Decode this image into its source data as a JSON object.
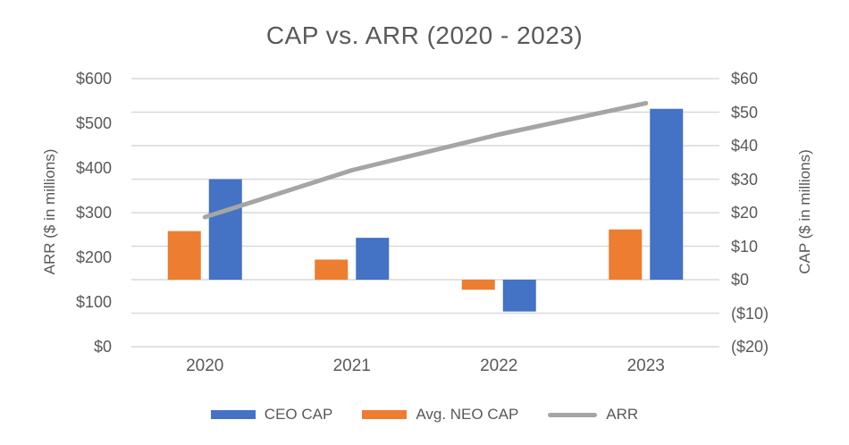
{
  "page": {
    "background": "#ffffff",
    "text_color": "#595959"
  },
  "chart_data": {
    "type": "combo_bar_line",
    "title": "CAP vs. ARR (2020 - 2023)",
    "categories": [
      "2020",
      "2021",
      "2022",
      "2023"
    ],
    "series": [
      {
        "name": "Avg. NEO CAP",
        "type": "bar",
        "axis": "right",
        "color": "#ED7D31",
        "values": [
          14.5,
          6,
          -3,
          15
        ]
      },
      {
        "name": "CEO CAP",
        "type": "bar",
        "axis": "right",
        "color": "#4472C4",
        "values": [
          30,
          12.5,
          -9.5,
          51
        ]
      },
      {
        "name": "ARR",
        "type": "line",
        "axis": "left",
        "color": "#A5A5A5",
        "values": [
          290,
          395,
          475,
          545
        ]
      }
    ],
    "left_axis": {
      "label": "ARR ($ in millions)",
      "min": 0,
      "max": 600,
      "tick_step": 100,
      "ticks": [
        "$600",
        "$500",
        "$400",
        "$300",
        "$200",
        "$100",
        "$0"
      ]
    },
    "right_axis": {
      "label": "CAP ($ in millions)",
      "min": -20,
      "max": 60,
      "tick_step": 10,
      "ticks": [
        "$60",
        "$50",
        "$40",
        "$30",
        "$20",
        "$10",
        "$0",
        "($10)",
        "($20)"
      ]
    },
    "grid": {
      "show": true,
      "color": "#D9D9D9",
      "aligned_to": "right_axis_ticks"
    },
    "legend": {
      "position": "bottom",
      "items": [
        {
          "label": "CEO CAP",
          "swatch": "bar",
          "color": "#4472C4"
        },
        {
          "label": "Avg. NEO CAP",
          "swatch": "bar",
          "color": "#ED7D31"
        },
        {
          "label": "ARR",
          "swatch": "line",
          "color": "#A5A5A5"
        }
      ]
    }
  }
}
